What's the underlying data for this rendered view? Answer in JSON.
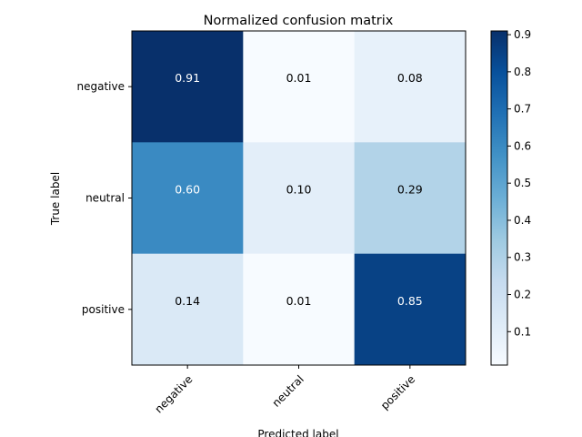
{
  "chart_data": {
    "type": "heatmap",
    "title": "Normalized confusion matrix",
    "xlabel": "Predicted label",
    "ylabel": "True label",
    "x_categories": [
      "negative",
      "neutral",
      "positive"
    ],
    "y_categories": [
      "negative",
      "neutral",
      "positive"
    ],
    "values": [
      [
        0.91,
        0.01,
        0.08
      ],
      [
        0.6,
        0.1,
        0.29
      ],
      [
        0.14,
        0.01,
        0.85
      ]
    ],
    "cell_labels": [
      [
        "0.91",
        "0.01",
        "0.08"
      ],
      [
        "0.60",
        "0.10",
        "0.29"
      ],
      [
        "0.14",
        "0.01",
        "0.85"
      ]
    ],
    "colormap": "Blues",
    "colorbar": {
      "range": [
        0.01,
        0.91
      ],
      "ticks": [
        0.1,
        0.2,
        0.3,
        0.4,
        0.5,
        0.6,
        0.7,
        0.8,
        0.9
      ],
      "tick_labels": [
        "0.1",
        "0.2",
        "0.3",
        "0.4",
        "0.5",
        "0.6",
        "0.7",
        "0.8",
        "0.9"
      ]
    },
    "grid": false,
    "x_tick_rotation": 45
  }
}
